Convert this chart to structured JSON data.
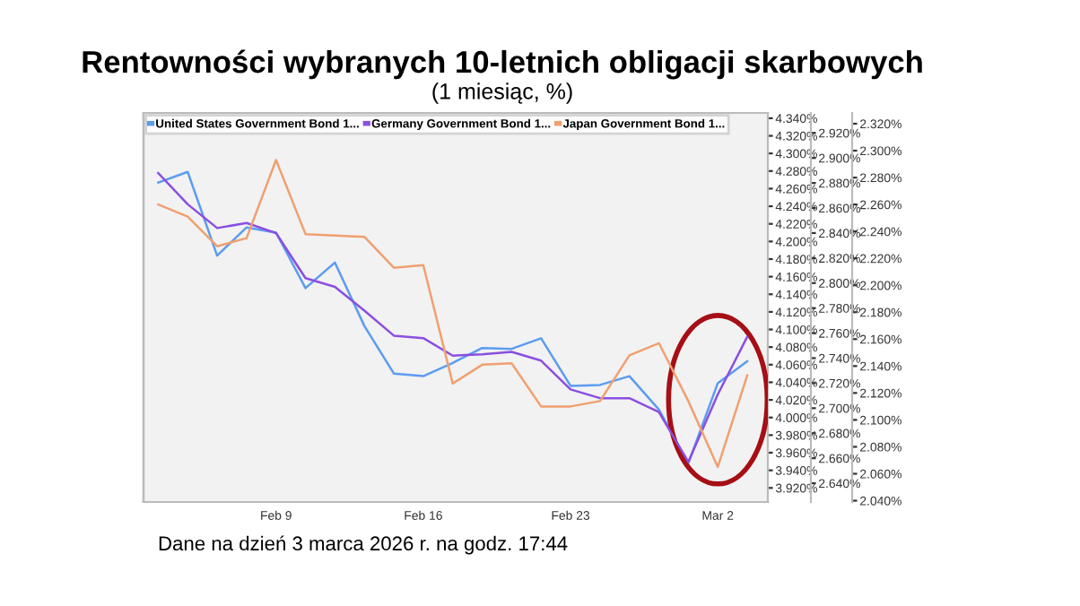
{
  "chart_data": {
    "type": "line",
    "title": "Rentowności wybranych 10-letnich obligacji skarbowych",
    "subtitle": "(1 miesiąc, %)",
    "categories": [
      null,
      null,
      null,
      null,
      "Feb 9",
      null,
      null,
      null,
      null,
      "Feb 16",
      null,
      null,
      null,
      null,
      "Feb 23",
      null,
      null,
      null,
      null,
      "Mar 2",
      null
    ],
    "series": [
      {
        "name": "United States Government Bond 1...",
        "color": "#5c9cf0",
        "axis": "y",
        "values": [
          4.267,
          4.279,
          4.184,
          4.216,
          4.21,
          4.147,
          4.176,
          4.104,
          4.05,
          4.047,
          4.062,
          4.079,
          4.078,
          4.09,
          4.036,
          4.037,
          4.047,
          4.009,
          3.948,
          4.039,
          4.064
        ]
      },
      {
        "name": "Germany Government Bond 1...",
        "color": "#8a4fe0",
        "axis": "y2",
        "values": [
          2.888,
          2.863,
          2.844,
          2.848,
          2.84,
          2.804,
          2.797,
          2.778,
          2.758,
          2.756,
          2.742,
          2.743,
          2.745,
          2.738,
          2.715,
          2.708,
          2.708,
          2.697,
          2.657,
          2.711,
          2.757
        ]
      },
      {
        "name": "Japan Government Bond 1...",
        "color": "#f0a070",
        "axis": "y3",
        "values": [
          2.26,
          2.251,
          2.229,
          2.235,
          2.293,
          2.238,
          2.237,
          2.236,
          2.213,
          2.215,
          2.127,
          2.141,
          2.142,
          2.11,
          2.11,
          2.114,
          2.148,
          2.157,
          2.114,
          2.065,
          2.133
        ]
      }
    ],
    "ylim": [
      3.904,
      4.346
    ],
    "yticks": [
      {
        "value": 4.34,
        "label": "4.340%"
      },
      {
        "value": 4.32,
        "label": "4.320%"
      },
      {
        "value": 4.3,
        "label": "4.300%"
      },
      {
        "value": 4.28,
        "label": "4.280%"
      },
      {
        "value": 4.26,
        "label": "4.260%"
      },
      {
        "value": 4.24,
        "label": "4.240%"
      },
      {
        "value": 4.22,
        "label": "4.220%"
      },
      {
        "value": 4.2,
        "label": "4.200%"
      },
      {
        "value": 4.18,
        "label": "4.180%"
      },
      {
        "value": 4.16,
        "label": "4.160%"
      },
      {
        "value": 4.14,
        "label": "4.140%"
      },
      {
        "value": 4.12,
        "label": "4.120%"
      },
      {
        "value": 4.1,
        "label": "4.100%"
      },
      {
        "value": 4.08,
        "label": "4.080%"
      },
      {
        "value": 4.06,
        "label": "4.060%"
      },
      {
        "value": 4.04,
        "label": "4.040%"
      },
      {
        "value": 4.02,
        "label": "4.020%"
      },
      {
        "value": 4.0,
        "label": "4.000%"
      },
      {
        "value": 3.98,
        "label": "3.980%"
      },
      {
        "value": 3.96,
        "label": "3.960%"
      },
      {
        "value": 3.94,
        "label": "3.940%"
      },
      {
        "value": 3.92,
        "label": "3.920%"
      }
    ],
    "y2lim": [
      2.625,
      2.936
    ],
    "y2ticks": [
      {
        "value": 2.92,
        "label": "2.920%"
      },
      {
        "value": 2.9,
        "label": "2.900%"
      },
      {
        "value": 2.88,
        "label": "2.880%"
      },
      {
        "value": 2.86,
        "label": "2.860%"
      },
      {
        "value": 2.84,
        "label": "2.840%"
      },
      {
        "value": 2.82,
        "label": "2.820%"
      },
      {
        "value": 2.8,
        "label": "2.800%"
      },
      {
        "value": 2.78,
        "label": "2.780%"
      },
      {
        "value": 2.76,
        "label": "2.760%"
      },
      {
        "value": 2.74,
        "label": "2.740%"
      },
      {
        "value": 2.72,
        "label": "2.720%"
      },
      {
        "value": 2.7,
        "label": "2.700%"
      },
      {
        "value": 2.68,
        "label": "2.680%"
      },
      {
        "value": 2.66,
        "label": "2.660%"
      },
      {
        "value": 2.64,
        "label": "2.640%"
      }
    ],
    "y3lim": [
      2.039,
      2.328
    ],
    "y3ticks": [
      {
        "value": 2.32,
        "label": "2.320%"
      },
      {
        "value": 2.3,
        "label": "2.300%"
      },
      {
        "value": 2.28,
        "label": "2.280%"
      },
      {
        "value": 2.26,
        "label": "2.260%"
      },
      {
        "value": 2.24,
        "label": "2.240%"
      },
      {
        "value": 2.22,
        "label": "2.220%"
      },
      {
        "value": 2.2,
        "label": "2.200%"
      },
      {
        "value": 2.18,
        "label": "2.180%"
      },
      {
        "value": 2.16,
        "label": "2.160%"
      },
      {
        "value": 2.14,
        "label": "2.140%"
      },
      {
        "value": 2.12,
        "label": "2.120%"
      },
      {
        "value": 2.1,
        "label": "2.100%"
      },
      {
        "value": 2.08,
        "label": "2.080%"
      },
      {
        "value": 2.06,
        "label": "2.060%"
      },
      {
        "value": 2.04,
        "label": "2.040%"
      }
    ],
    "legend": "top left",
    "grid": false,
    "marker": "none",
    "line_style": "solid",
    "annotations": [
      "Dane na dzień 3 marca 2026 r. na godz. 17:44"
    ]
  }
}
